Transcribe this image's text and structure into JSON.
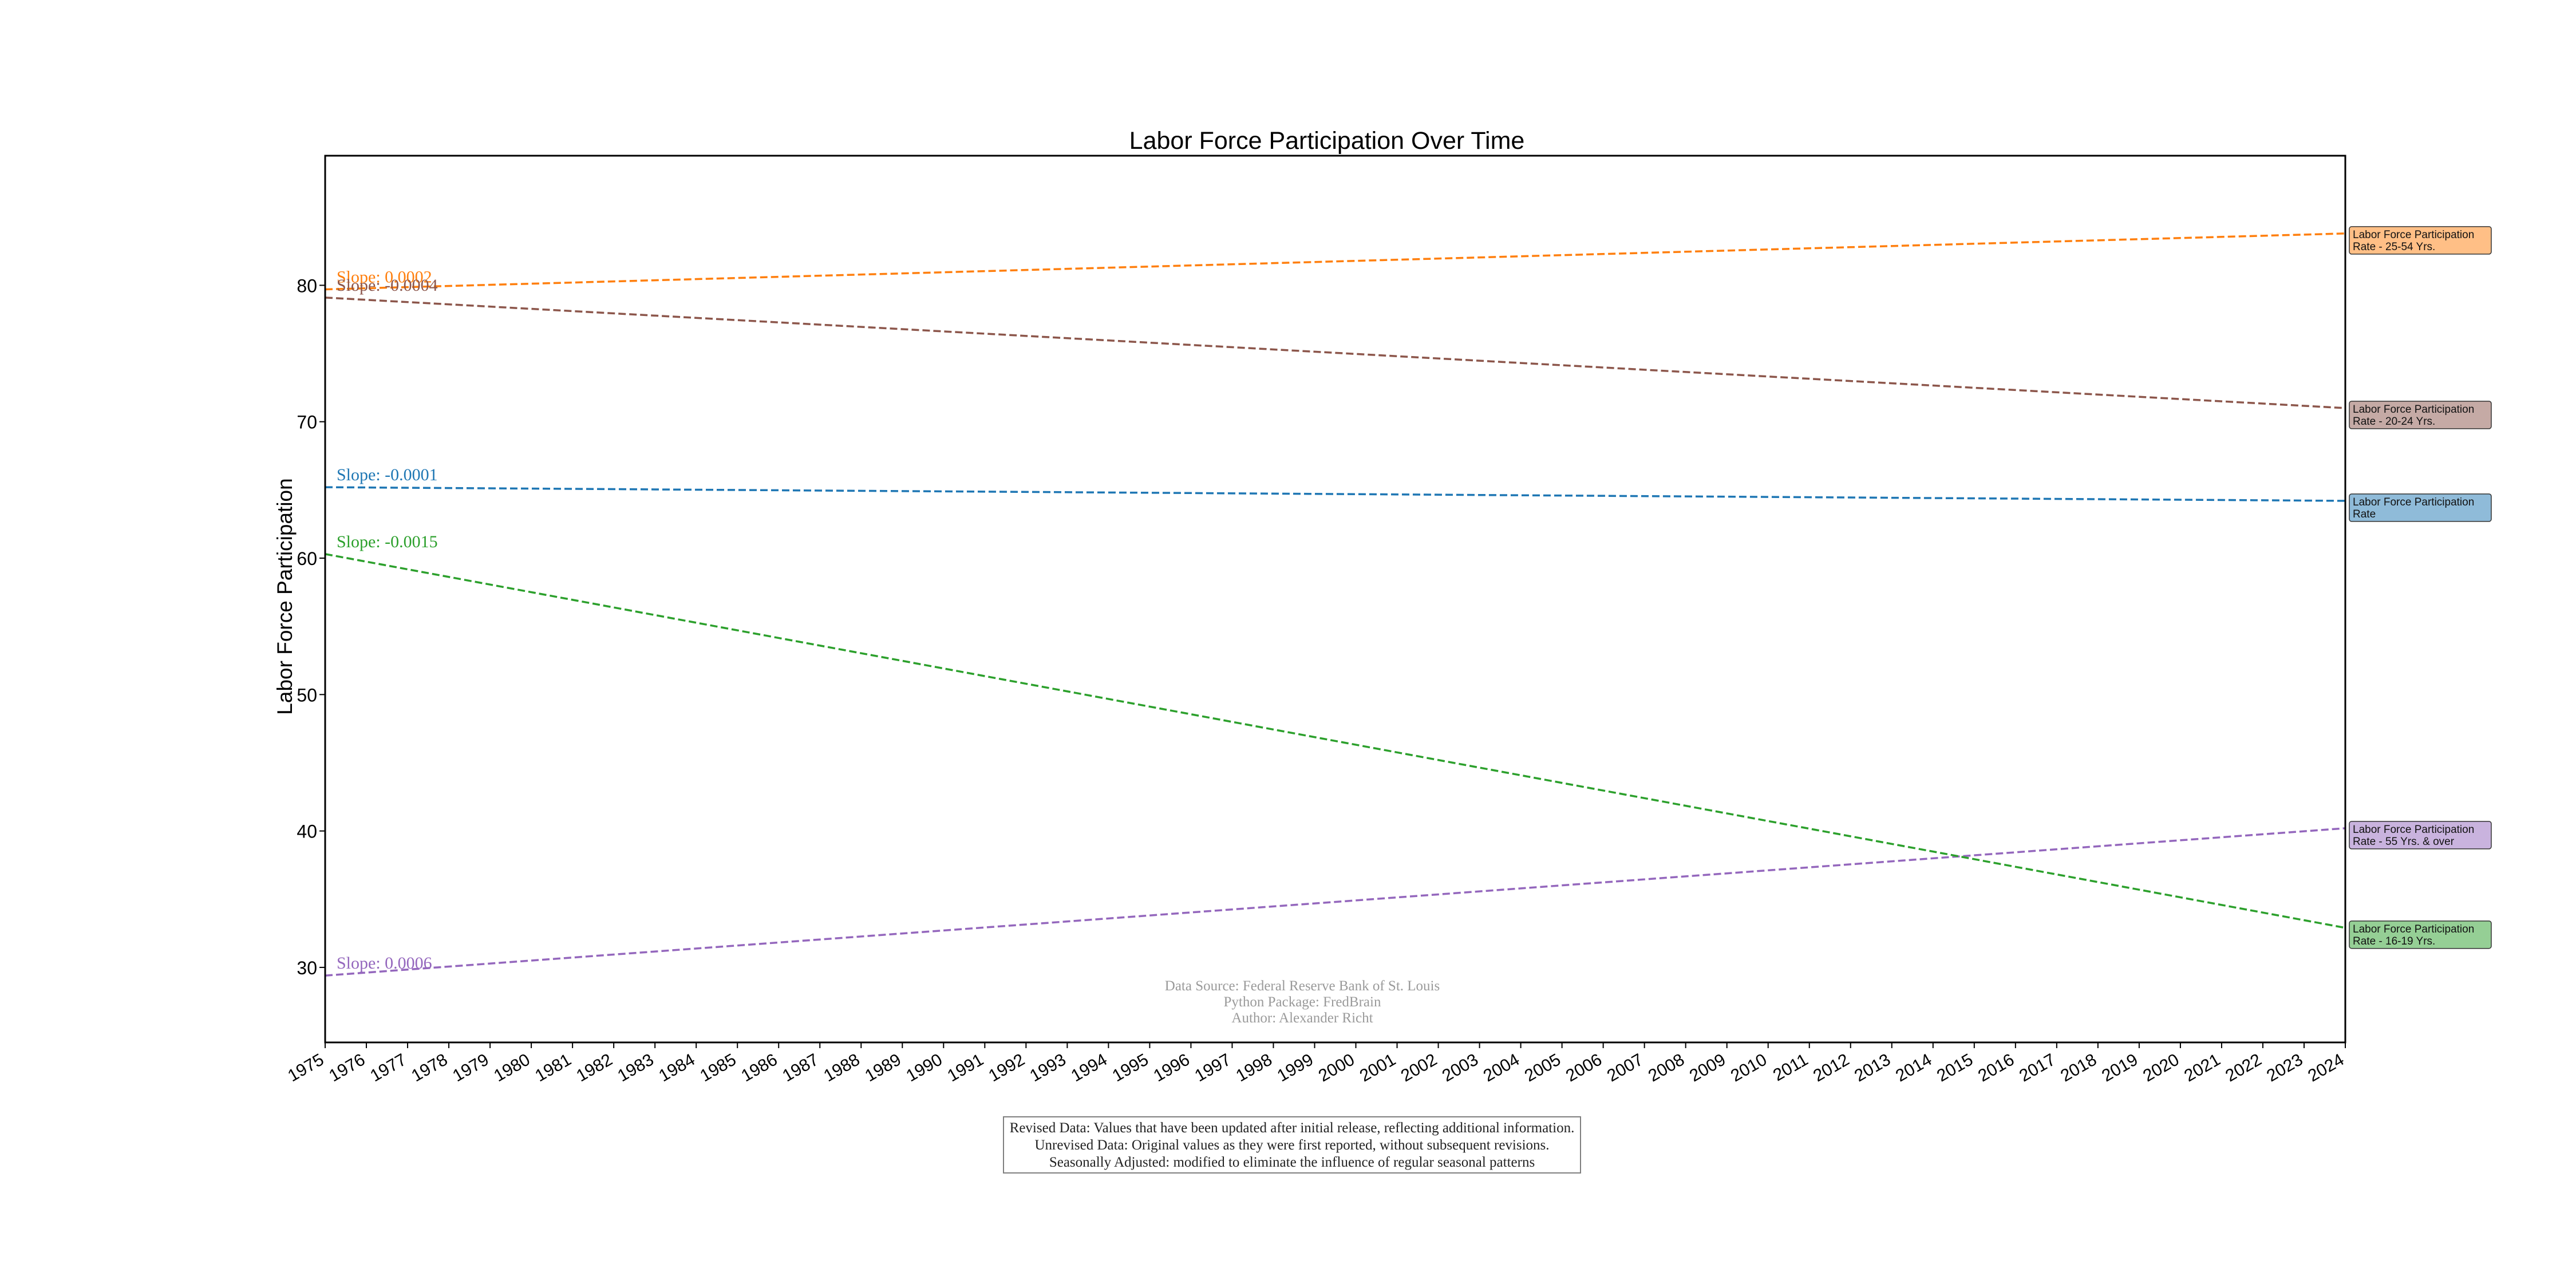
{
  "chart_data": {
    "type": "line",
    "title": "Labor Force Participation Over Time",
    "xlabel": "",
    "ylabel": "Labor Force Participation",
    "xlim": [
      1975,
      2024
    ],
    "ylim": [
      24.5,
      89.5
    ],
    "x_ticks": [
      "1975",
      "1976",
      "1977",
      "1978",
      "1979",
      "1980",
      "1981",
      "1982",
      "1983",
      "1984",
      "1985",
      "1986",
      "1987",
      "1988",
      "1989",
      "1990",
      "1991",
      "1992",
      "1993",
      "1994",
      "1995",
      "1996",
      "1997",
      "1998",
      "1999",
      "2000",
      "2001",
      "2002",
      "2003",
      "2004",
      "2005",
      "2006",
      "2007",
      "2008",
      "2009",
      "2010",
      "2011",
      "2012",
      "2013",
      "2014",
      "2015",
      "2016",
      "2017",
      "2018",
      "2019",
      "2020",
      "2021",
      "2022",
      "2023",
      "2024"
    ],
    "y_ticks": [
      30,
      40,
      50,
      60,
      70,
      80
    ],
    "grid": false,
    "legend": "right, outside plot",
    "series": [
      {
        "name": "Labor Force Participation Rate - 25-54 Yrs.",
        "name_lines": [
          "Labor Force Participation",
          "Rate - 25-54 Yrs."
        ],
        "color": "#ff7f0e",
        "label_bg": "#ffbf86",
        "x": [
          1975,
          2024
        ],
        "y": [
          79.7,
          83.8
        ],
        "slope_label": "Slope: 0.0002"
      },
      {
        "name": "Labor Force Participation Rate - 20-24 Yrs.",
        "name_lines": [
          "Labor Force Participation",
          "Rate - 20-24 Yrs."
        ],
        "color": "#8c564b",
        "label_bg": "#c5aaa5",
        "x": [
          1975,
          2024
        ],
        "y": [
          79.1,
          71.0
        ],
        "slope_label": "Slope: -0.0004"
      },
      {
        "name": "Labor Force Participation Rate",
        "name_lines": [
          "Labor Force Participation",
          "Rate"
        ],
        "color": "#1f77b4",
        "label_bg": "#8fbbd9",
        "x": [
          1975,
          2024
        ],
        "y": [
          65.2,
          64.2
        ],
        "slope_label": "Slope: -0.0001"
      },
      {
        "name": "Labor Force Participation Rate - 55 Yrs. & over",
        "name_lines": [
          "Labor Force Participation",
          "Rate - 55 Yrs. & over"
        ],
        "color": "#9467bd",
        "label_bg": "#c9b3de",
        "x": [
          1975,
          2024
        ],
        "y": [
          29.4,
          40.2
        ],
        "slope_label": "Slope: 0.0006"
      },
      {
        "name": "Labor Force Participation Rate - 16-19 Yrs.",
        "name_lines": [
          "Labor Force Participation",
          "Rate - 16-19 Yrs."
        ],
        "color": "#2ca02c",
        "label_bg": "#95cf95",
        "x": [
          1975,
          2024
        ],
        "y": [
          60.3,
          32.9
        ],
        "slope_label": "Slope: -0.0015"
      }
    ],
    "annotations": {
      "source_lines": [
        "Data Source: Federal Reserve Bank of St. Louis",
        "Python Package: FredBrain",
        "Author: Alexander Richt"
      ]
    }
  },
  "notes": {
    "lines": [
      "Revised Data: Values that have been updated after initial release, reflecting additional information.",
      "Unrevised Data: Original values as they were first reported, without subsequent revisions.",
      "Seasonally Adjusted: modified to eliminate the influence of regular seasonal patterns"
    ]
  }
}
